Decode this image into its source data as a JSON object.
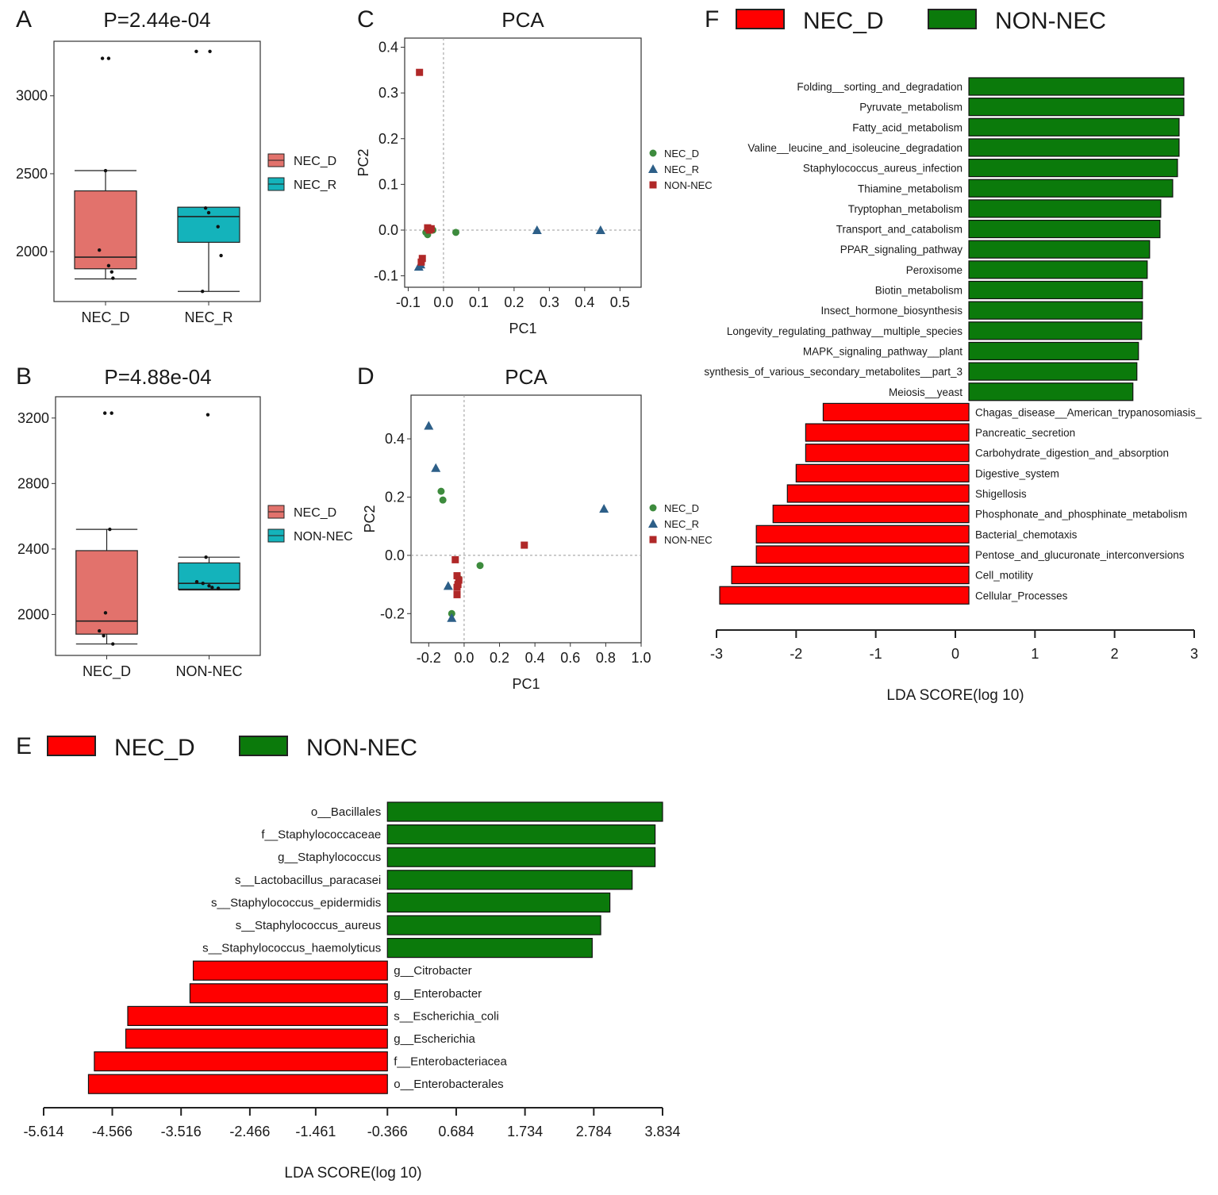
{
  "panels": {
    "A": {
      "letter": "A",
      "title": "P=2.44e-04",
      "categories": [
        "NEC_D",
        "NEC_R"
      ],
      "legend": [
        "NEC_D",
        "NEC_R"
      ],
      "colors": [
        "#e2726c",
        "#14b3bb"
      ],
      "yticks": [
        2000,
        2500,
        3000
      ],
      "ylim": [
        1680,
        3350
      ],
      "boxes": [
        {
          "whisker_low": 1825,
          "q1": 1890,
          "median": 1965,
          "q3": 2390,
          "whisker_high": 2520
        },
        {
          "whisker_low": 1745,
          "q1": 2060,
          "median": 2225,
          "q3": 2285,
          "whisker_high": 2285
        }
      ],
      "points": [
        [
          [
            3240,
            -0.05
          ],
          [
            3240,
            0.05
          ],
          [
            2520,
            0
          ],
          [
            2010,
            -0.1
          ],
          [
            1910,
            0.05
          ],
          [
            1870,
            0.1
          ],
          [
            1830,
            0.12
          ]
        ],
        [
          [
            3285,
            -0.2
          ],
          [
            3285,
            0.02
          ],
          [
            2280,
            -0.05
          ],
          [
            2250,
            0
          ],
          [
            2160,
            0.15
          ],
          [
            1975,
            0.2
          ],
          [
            1745,
            -0.1
          ]
        ]
      ]
    },
    "B": {
      "letter": "B",
      "title": "P=4.88e-04",
      "categories": [
        "NEC_D",
        "NON-NEC"
      ],
      "legend": [
        "NEC_D",
        "NON-NEC"
      ],
      "colors": [
        "#e2726c",
        "#14b3bb"
      ],
      "yticks": [
        2000,
        2400,
        2800,
        3200
      ],
      "ylim": [
        1750,
        3330
      ],
      "boxes": [
        {
          "whisker_low": 1820,
          "q1": 1880,
          "median": 1960,
          "q3": 2390,
          "whisker_high": 2520
        },
        {
          "whisker_low": 2150,
          "q1": 2155,
          "median": 2190,
          "q3": 2315,
          "whisker_high": 2350
        }
      ],
      "points": [
        [
          [
            3230,
            -0.03
          ],
          [
            3230,
            0.08
          ],
          [
            2520,
            0.05
          ],
          [
            2010,
            -0.02
          ],
          [
            1900,
            -0.12
          ],
          [
            1870,
            -0.05
          ],
          [
            1820,
            0.1
          ]
        ],
        [
          [
            3220,
            -0.02
          ],
          [
            2350,
            -0.05
          ],
          [
            2200,
            -0.2
          ],
          [
            2190,
            -0.1
          ],
          [
            2175,
            0
          ],
          [
            2165,
            0.05
          ],
          [
            2160,
            0.15
          ]
        ]
      ]
    },
    "C": {
      "letter": "C",
      "title": "PCA",
      "xlabel": "PC1",
      "ylabel": "PC2",
      "xticks": [
        "-0.1",
        "0.0",
        "0.1",
        "0.2",
        "0.3",
        "0.4",
        "0.5"
      ],
      "xtick_values": [
        -0.1,
        0,
        0.1,
        0.2,
        0.3,
        0.4,
        0.5
      ],
      "yticks": [
        "0.4",
        "0.3",
        "0.2",
        "0.1",
        "0.0",
        "-0.1"
      ],
      "ytick_values": [
        0.4,
        0.3,
        0.2,
        0.1,
        0,
        -0.1
      ],
      "xlim": [
        -0.11,
        0.56
      ],
      "ylim": [
        -0.125,
        0.42
      ],
      "legend": [
        "NEC_D",
        "NEC_R",
        "NON-NEC"
      ],
      "colors": [
        "#3d8b3d",
        "#2d5f88",
        "#b02828"
      ],
      "points": {
        "NEC_D": [
          [
            -0.045,
            -0.01
          ],
          [
            -0.05,
            -0.005
          ],
          [
            -0.03,
            0
          ],
          [
            0.035,
            -0.005
          ]
        ],
        "NEC_R": [
          [
            -0.07,
            -0.08
          ],
          [
            -0.065,
            -0.075
          ],
          [
            0.265,
            0
          ],
          [
            0.445,
            0
          ]
        ],
        "NON-NEC": [
          [
            -0.068,
            0.345
          ],
          [
            -0.045,
            0.005
          ],
          [
            -0.04,
            0
          ],
          [
            -0.035,
            0.003
          ],
          [
            -0.06,
            -0.062
          ],
          [
            -0.063,
            -0.07
          ]
        ]
      }
    },
    "D": {
      "letter": "D",
      "title": "PCA",
      "xlabel": "PC1",
      "ylabel": "PC2",
      "xticks": [
        "-0.2",
        "0.0",
        "0.2",
        "0.4",
        "0.6",
        "0.8",
        "1.0"
      ],
      "xtick_values": [
        -0.2,
        0,
        0.2,
        0.4,
        0.6,
        0.8,
        1.0
      ],
      "yticks": [
        "0.4",
        "0.2",
        "0.0",
        "-0.2"
      ],
      "ytick_values": [
        0.4,
        0.2,
        0,
        -0.2
      ],
      "xlim": [
        -0.3,
        1.0
      ],
      "ylim": [
        -0.3,
        0.55
      ],
      "legend": [
        "NEC_D",
        "NEC_R",
        "NON-NEC"
      ],
      "colors": [
        "#3d8b3d",
        "#2d5f88",
        "#b02828"
      ],
      "points": {
        "NEC_D": [
          [
            -0.13,
            0.22
          ],
          [
            -0.12,
            0.19
          ],
          [
            0.09,
            -0.035
          ],
          [
            -0.07,
            -0.2
          ],
          [
            -0.03,
            -0.08
          ]
        ],
        "NEC_R": [
          [
            -0.2,
            0.445
          ],
          [
            -0.16,
            0.3
          ],
          [
            0.79,
            0.16
          ],
          [
            -0.09,
            -0.105
          ],
          [
            -0.07,
            -0.215
          ]
        ],
        "NON-NEC": [
          [
            0.34,
            0.035
          ],
          [
            -0.05,
            -0.015
          ],
          [
            -0.04,
            -0.07
          ],
          [
            -0.03,
            -0.085
          ],
          [
            -0.035,
            -0.1
          ],
          [
            -0.04,
            -0.11
          ],
          [
            -0.04,
            -0.135
          ]
        ]
      }
    },
    "E": {
      "letter": "E",
      "legend": [
        "NEC_D",
        "NON-NEC"
      ],
      "colors": [
        "#ff0000",
        "#0b7a0b"
      ],
      "xlabel": "LDA SCORE(log 10)",
      "xticks": [
        "-5.614",
        "-4.566",
        "-3.516",
        "-2.466",
        "-1.461",
        "-0.366",
        "0.684",
        "1.734",
        "2.784",
        "3.834"
      ],
      "xtick_values": [
        -5.614,
        -4.566,
        -3.516,
        -2.466,
        -1.461,
        -0.366,
        0.684,
        1.734,
        2.784,
        3.834
      ],
      "xlim": [
        -5.614,
        3.834
      ],
      "zero": -0.366,
      "bars": [
        {
          "label": "o__Bacillales",
          "value": 3.834,
          "group": 1
        },
        {
          "label": "f__Staphylococcaceae",
          "value": 3.72,
          "group": 1
        },
        {
          "label": "g__Staphylococcus",
          "value": 3.72,
          "group": 1
        },
        {
          "label": "s__Lactobacillus_paracasei",
          "value": 3.37,
          "group": 1
        },
        {
          "label": "s__Staphylococcus_epidermidis",
          "value": 3.03,
          "group": 1
        },
        {
          "label": "s__Staphylococcus_aureus",
          "value": 2.89,
          "group": 1
        },
        {
          "label": "s__Staphylococcus_haemolyticus",
          "value": 2.76,
          "group": 1
        },
        {
          "label": "g__Citrobacter",
          "value": -3.33,
          "group": 0
        },
        {
          "label": "g__Enterobacter",
          "value": -3.38,
          "group": 0
        },
        {
          "label": "s__Escherichia_coli",
          "value": -4.33,
          "group": 0
        },
        {
          "label": "g__Escherichia",
          "value": -4.36,
          "group": 0
        },
        {
          "label": "f__Enterobacteriacea",
          "value": -4.84,
          "group": 0
        },
        {
          "label": "o__Enterobacterales",
          "value": -4.93,
          "group": 0
        }
      ]
    },
    "F": {
      "letter": "F",
      "legend": [
        "NEC_D",
        "NON-NEC"
      ],
      "colors": [
        "#ff0000",
        "#0b7a0b"
      ],
      "xlabel": "LDA SCORE(log 10)",
      "xticks": [
        "-3",
        "-2",
        "-1",
        "0",
        "1",
        "2",
        "3"
      ],
      "xtick_values": [
        -3,
        -2,
        -1,
        0,
        1,
        2,
        3
      ],
      "xlim": [
        -3,
        3
      ],
      "zero": 0.17,
      "bars": [
        {
          "label": "Folding__sorting_and_degradation",
          "value": 2.87,
          "group": 1
        },
        {
          "label": "Pyruvate_metabolism",
          "value": 2.87,
          "group": 1
        },
        {
          "label": "Fatty_acid_metabolism",
          "value": 2.81,
          "group": 1
        },
        {
          "label": "Valine__leucine_and_isoleucine_degradation",
          "value": 2.81,
          "group": 1
        },
        {
          "label": "Staphylococcus_aureus_infection",
          "value": 2.79,
          "group": 1
        },
        {
          "label": "Thiamine_metabolism",
          "value": 2.73,
          "group": 1
        },
        {
          "label": "Tryptophan_metabolism",
          "value": 2.58,
          "group": 1
        },
        {
          "label": "Transport_and_catabolism",
          "value": 2.57,
          "group": 1
        },
        {
          "label": "PPAR_signaling_pathway",
          "value": 2.44,
          "group": 1
        },
        {
          "label": "Peroxisome",
          "value": 2.41,
          "group": 1
        },
        {
          "label": "Biotin_metabolism",
          "value": 2.35,
          "group": 1
        },
        {
          "label": "Insect_hormone_biosynthesis",
          "value": 2.35,
          "group": 1
        },
        {
          "label": "Longevity_regulating_pathway__multiple_species",
          "value": 2.34,
          "group": 1
        },
        {
          "label": "MAPK_signaling_pathway__plant",
          "value": 2.3,
          "group": 1
        },
        {
          "label": "synthesis_of_various_secondary_metabolites__part_3",
          "value": 2.28,
          "group": 1
        },
        {
          "label": "Meiosis__yeast",
          "value": 2.23,
          "group": 1
        },
        {
          "label": "Chagas_disease__American_trypanosomiasis_",
          "value": -1.66,
          "group": 0
        },
        {
          "label": "Pancreatic_secretion",
          "value": -1.88,
          "group": 0
        },
        {
          "label": "Carbohydrate_digestion_and_absorption",
          "value": -1.88,
          "group": 0
        },
        {
          "label": "Digestive_system",
          "value": -2.0,
          "group": 0
        },
        {
          "label": "Shigellosis",
          "value": -2.11,
          "group": 0
        },
        {
          "label": "Phosphonate_and_phosphinate_metabolism",
          "value": -2.29,
          "group": 0
        },
        {
          "label": "Bacterial_chemotaxis",
          "value": -2.5,
          "group": 0
        },
        {
          "label": "Pentose_and_glucuronate_interconversions",
          "value": -2.5,
          "group": 0
        },
        {
          "label": "Cell_motility",
          "value": -2.81,
          "group": 0
        },
        {
          "label": "Cellular_Processes",
          "value": -2.96,
          "group": 0
        }
      ]
    }
  },
  "chart_data": [
    {
      "type": "box",
      "panel": "A",
      "title": "P=2.44e-04",
      "categories": [
        "NEC_D",
        "NEC_R"
      ],
      "ylim": [
        1680,
        3350
      ],
      "series": [
        {
          "name": "NEC_D",
          "min": 1825,
          "q1": 1890,
          "median": 1965,
          "q3": 2390,
          "max": 2520
        },
        {
          "name": "NEC_R",
          "min": 1745,
          "q1": 2060,
          "median": 2225,
          "q3": 2285,
          "max": 2285
        }
      ]
    },
    {
      "type": "box",
      "panel": "B",
      "title": "P=4.88e-04",
      "categories": [
        "NEC_D",
        "NON-NEC"
      ],
      "ylim": [
        1750,
        3330
      ],
      "series": [
        {
          "name": "NEC_D",
          "min": 1820,
          "q1": 1880,
          "median": 1960,
          "q3": 2390,
          "max": 2520
        },
        {
          "name": "NON-NEC",
          "min": 2150,
          "q1": 2155,
          "median": 2190,
          "q3": 2315,
          "max": 2350
        }
      ]
    },
    {
      "type": "scatter",
      "panel": "C",
      "title": "PCA",
      "xlabel": "PC1",
      "ylabel": "PC2",
      "xlim": [
        -0.11,
        0.56
      ],
      "ylim": [
        -0.125,
        0.42
      ]
    },
    {
      "type": "scatter",
      "panel": "D",
      "title": "PCA",
      "xlabel": "PC1",
      "ylabel": "PC2",
      "xlim": [
        -0.3,
        1.0
      ],
      "ylim": [
        -0.3,
        0.55
      ]
    },
    {
      "type": "bar",
      "panel": "E",
      "orientation": "horizontal",
      "xlabel": "LDA SCORE(log 10)",
      "xlim": [
        -5.614,
        3.834
      ]
    },
    {
      "type": "bar",
      "panel": "F",
      "orientation": "horizontal",
      "xlabel": "LDA SCORE(log 10)",
      "xlim": [
        -3,
        3
      ]
    }
  ]
}
